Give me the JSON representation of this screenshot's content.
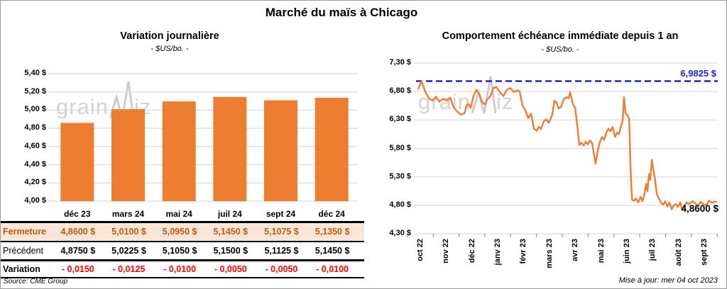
{
  "page": {
    "title": "Marché du maïs à Chicago",
    "updated": "Mise à jour: mer 04 oct 2023",
    "watermark": {
      "prefix": "grain",
      "suffix": "iz"
    }
  },
  "colors": {
    "orange": "#ED7D31",
    "blue": "#2121CE",
    "red": "#FF0000",
    "brown": "#BC5A12",
    "peach": "#FBE5D6",
    "grid": "#D9D9D9",
    "axis_tick": "#808080",
    "watermark": "#D3D3D3"
  },
  "table": {
    "columns": [
      "déc 23",
      "mars 24",
      "mai 24",
      "juil 24",
      "sept 24",
      "déc 24"
    ],
    "rows": [
      {
        "key": "fermeture",
        "label": "Fermeture",
        "values": [
          "4,8600 $",
          "5,0100 $",
          "5,0950 $",
          "5,1450 $",
          "5,1075 $",
          "5,1350 $"
        ]
      },
      {
        "key": "precedent",
        "label": "Précédent",
        "values": [
          "4,8750 $",
          "5,0225 $",
          "5,1050 $",
          "5,1500 $",
          "5,1125 $",
          "5,1450 $"
        ]
      },
      {
        "key": "variation",
        "label": "Variation",
        "values": [
          "- 0,0150",
          "- 0,0125",
          "- 0,0100",
          "- 0,0050",
          "- 0,0050",
          "- 0,0100"
        ]
      }
    ],
    "source": "Source: CME Group"
  },
  "chart_data": [
    {
      "id": "variation-journaliere",
      "type": "bar",
      "title": "Variation journalière",
      "subtitle": "- $US/bo. -",
      "categories": [
        "déc 23",
        "mars 24",
        "mai 24",
        "juil 24",
        "sept 24",
        "déc 24"
      ],
      "values": [
        4.86,
        5.01,
        5.095,
        5.145,
        5.1075,
        5.135
      ],
      "ylim": [
        4.0,
        5.4
      ],
      "ytick_step": 0.2,
      "y_ticks": [
        {
          "v": 5.4,
          "label": "5,40 $"
        },
        {
          "v": 5.2,
          "label": "5,20 $"
        },
        {
          "v": 5.0,
          "label": "5,00 $"
        },
        {
          "v": 4.8,
          "label": "4,80 $"
        },
        {
          "v": 4.6,
          "label": "4,60 $"
        },
        {
          "v": 4.4,
          "label": "4,40 $"
        },
        {
          "v": 4.2,
          "label": "4,20 $"
        },
        {
          "v": 4.0,
          "label": "4,00 $"
        }
      ],
      "bar_color": "#ED7D31",
      "grid": true,
      "legend": "none"
    },
    {
      "id": "comportement-echeance-immediate",
      "type": "line",
      "title": "Comportement échéance immédiate depuis 1 an",
      "subtitle": "- $US/bo. -",
      "x_ticks": [
        "oct 22",
        "nov 22",
        "déc 22",
        "janv 23",
        "févr 23",
        "mars 23",
        "avr 23",
        "mai 23",
        "juin 23",
        "juil 23",
        "août 23",
        "sept 23"
      ],
      "ylim": [
        4.3,
        7.3
      ],
      "ytick_step": 0.5,
      "y_ticks": [
        {
          "v": 7.3,
          "label": "7,30 $"
        },
        {
          "v": 6.8,
          "label": "6,80 $"
        },
        {
          "v": 6.3,
          "label": "6,30 $"
        },
        {
          "v": 5.8,
          "label": "5,80 $"
        },
        {
          "v": 5.3,
          "label": "5,30 $"
        },
        {
          "v": 4.8,
          "label": "4,80 $"
        },
        {
          "v": 4.3,
          "label": "4,30 $"
        }
      ],
      "line_color": "#ED7D31",
      "grid": true,
      "legend": "none",
      "reference_line": {
        "value": 6.9825,
        "label": "6,9825 $",
        "color": "#2121CE",
        "style": "dashed"
      },
      "last_point_label": {
        "value": 4.86,
        "label": "4,8600 $"
      },
      "points": [
        [
          -0.08,
          6.85
        ],
        [
          0.05,
          6.98
        ],
        [
          0.19,
          6.8
        ],
        [
          0.33,
          6.68
        ],
        [
          0.47,
          6.64
        ],
        [
          0.61,
          6.71
        ],
        [
          0.74,
          6.62
        ],
        [
          0.88,
          6.67
        ],
        [
          1.02,
          6.64
        ],
        [
          1.16,
          6.69
        ],
        [
          1.29,
          6.52
        ],
        [
          1.43,
          6.45
        ],
        [
          1.57,
          6.39
        ],
        [
          1.71,
          6.42
        ],
        [
          1.79,
          6.55
        ],
        [
          1.87,
          6.58
        ],
        [
          1.95,
          6.51
        ],
        [
          2.06,
          6.72
        ],
        [
          2.17,
          6.83
        ],
        [
          2.28,
          6.76
        ],
        [
          2.39,
          6.62
        ],
        [
          2.5,
          6.57
        ],
        [
          2.61,
          6.67
        ],
        [
          2.72,
          6.72
        ],
        [
          2.83,
          6.86
        ],
        [
          2.94,
          6.88
        ],
        [
          3.08,
          6.79
        ],
        [
          3.22,
          6.72
        ],
        [
          3.35,
          6.83
        ],
        [
          3.49,
          6.86
        ],
        [
          3.63,
          6.79
        ],
        [
          3.77,
          6.82
        ],
        [
          3.85,
          6.8
        ],
        [
          3.96,
          6.55
        ],
        [
          4.07,
          6.47
        ],
        [
          4.18,
          6.33
        ],
        [
          4.29,
          6.41
        ],
        [
          4.4,
          6.15
        ],
        [
          4.51,
          6.11
        ],
        [
          4.59,
          6.18
        ],
        [
          4.67,
          6.14
        ],
        [
          4.78,
          6.27
        ],
        [
          4.87,
          6.31
        ],
        [
          4.98,
          6.25
        ],
        [
          5.11,
          6.39
        ],
        [
          5.2,
          6.64
        ],
        [
          5.28,
          6.6
        ],
        [
          5.36,
          6.5
        ],
        [
          5.45,
          6.53
        ],
        [
          5.56,
          6.67
        ],
        [
          5.67,
          6.7
        ],
        [
          5.75,
          6.68
        ],
        [
          5.8,
          6.79
        ],
        [
          5.91,
          6.58
        ],
        [
          6.0,
          6.51
        ],
        [
          6.08,
          6.2
        ],
        [
          6.16,
          5.86
        ],
        [
          6.24,
          5.9
        ],
        [
          6.33,
          5.85
        ],
        [
          6.41,
          5.92
        ],
        [
          6.49,
          5.87
        ],
        [
          6.57,
          5.94
        ],
        [
          6.66,
          5.89
        ],
        [
          6.74,
          5.65
        ],
        [
          6.79,
          5.53
        ],
        [
          6.88,
          5.78
        ],
        [
          6.96,
          5.92
        ],
        [
          7.04,
          6.0
        ],
        [
          7.12,
          5.95
        ],
        [
          7.21,
          6.08
        ],
        [
          7.29,
          6.15
        ],
        [
          7.37,
          6.1
        ],
        [
          7.45,
          6.18
        ],
        [
          7.54,
          6.0
        ],
        [
          7.62,
          6.08
        ],
        [
          7.7,
          6.05
        ],
        [
          7.78,
          6.2
        ],
        [
          7.84,
          6.3
        ],
        [
          7.89,
          6.7
        ],
        [
          7.95,
          6.42
        ],
        [
          8.03,
          6.38
        ],
        [
          8.09,
          6.32
        ],
        [
          8.14,
          5.5
        ],
        [
          8.2,
          4.9
        ],
        [
          8.28,
          4.88
        ],
        [
          8.36,
          4.92
        ],
        [
          8.44,
          4.85
        ],
        [
          8.53,
          4.95
        ],
        [
          8.61,
          4.87
        ],
        [
          8.69,
          5.02
        ],
        [
          8.75,
          5.18
        ],
        [
          8.8,
          5.05
        ],
        [
          8.86,
          5.35
        ],
        [
          8.91,
          5.25
        ],
        [
          8.97,
          5.6
        ],
        [
          9.02,
          5.45
        ],
        [
          9.08,
          5.3
        ],
        [
          9.16,
          5.0
        ],
        [
          9.24,
          4.92
        ],
        [
          9.32,
          4.85
        ],
        [
          9.41,
          4.81
        ],
        [
          9.49,
          4.87
        ],
        [
          9.57,
          4.78
        ],
        [
          9.65,
          4.85
        ],
        [
          9.74,
          4.73
        ],
        [
          9.82,
          4.8
        ],
        [
          9.9,
          4.82
        ],
        [
          9.98,
          4.77
        ],
        [
          10.07,
          4.85
        ],
        [
          10.15,
          4.72
        ],
        [
          10.23,
          4.79
        ],
        [
          10.31,
          4.85
        ],
        [
          10.42,
          4.82
        ],
        [
          10.53,
          4.87
        ],
        [
          10.64,
          4.84
        ],
        [
          10.75,
          4.79
        ],
        [
          10.86,
          4.86
        ],
        [
          10.97,
          4.82
        ],
        [
          11.08,
          4.8
        ],
        [
          11.19,
          4.88
        ],
        [
          11.3,
          4.84
        ],
        [
          11.41,
          4.87
        ],
        [
          11.47,
          4.86
        ]
      ]
    }
  ]
}
